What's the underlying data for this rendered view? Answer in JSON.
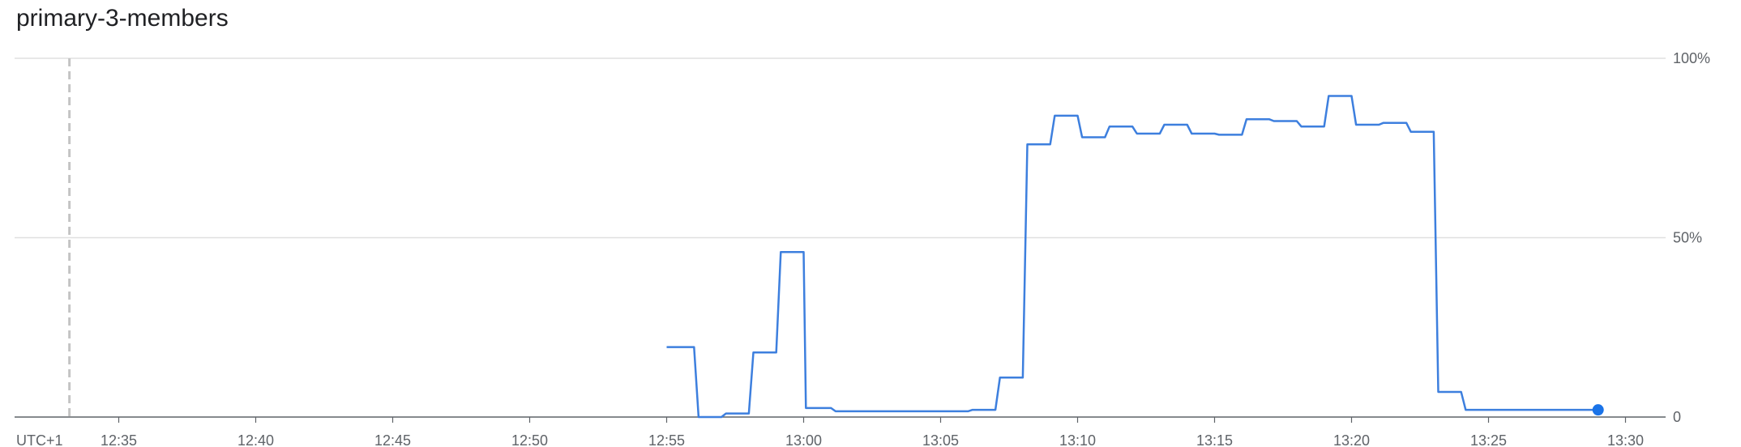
{
  "chart_data": {
    "type": "line",
    "title": "primary-3-members",
    "timezone_label": "UTC+1",
    "x_tick_labels": [
      "12:35",
      "12:40",
      "12:45",
      "12:50",
      "12:55",
      "13:00",
      "13:05",
      "13:10",
      "13:15",
      "13:20",
      "13:25",
      "13:30"
    ],
    "y_tick_labels": [
      "0",
      "50%",
      "100%"
    ],
    "ylim": [
      0,
      100
    ],
    "xlim_minutes": [
      "12:33",
      "13:31"
    ],
    "grid": true,
    "marker_time": "12:33:12",
    "series": [
      {
        "color": "#3d7fde",
        "points": [
          [
            "12:55:00",
            19.5
          ],
          [
            "12:56:00",
            19.5
          ],
          [
            "12:56:10",
            0
          ],
          [
            "12:57:00",
            0
          ],
          [
            "12:57:10",
            1
          ],
          [
            "12:58:00",
            1
          ],
          [
            "12:58:10",
            18
          ],
          [
            "12:59:00",
            18
          ],
          [
            "12:59:10",
            46
          ],
          [
            "13:00:00",
            46
          ],
          [
            "13:00:05",
            2.5
          ],
          [
            "13:01:00",
            2.5
          ],
          [
            "13:01:10",
            1.6
          ],
          [
            "13:06:00",
            1.6
          ],
          [
            "13:06:10",
            2
          ],
          [
            "13:07:00",
            2
          ],
          [
            "13:07:10",
            11
          ],
          [
            "13:08:00",
            11
          ],
          [
            "13:08:10",
            76
          ],
          [
            "13:09:00",
            76
          ],
          [
            "13:09:10",
            84
          ],
          [
            "13:10:00",
            84
          ],
          [
            "13:10:10",
            78
          ],
          [
            "13:11:00",
            78
          ],
          [
            "13:11:10",
            81
          ],
          [
            "13:12:00",
            81
          ],
          [
            "13:12:10",
            79
          ],
          [
            "13:13:00",
            79
          ],
          [
            "13:13:10",
            81.5
          ],
          [
            "13:14:00",
            81.5
          ],
          [
            "13:14:10",
            79
          ],
          [
            "13:15:00",
            79
          ],
          [
            "13:15:10",
            78.7
          ],
          [
            "13:16:00",
            78.7
          ],
          [
            "13:16:10",
            83
          ],
          [
            "13:17:00",
            83
          ],
          [
            "13:17:10",
            82.5
          ],
          [
            "13:18:00",
            82.5
          ],
          [
            "13:18:10",
            81
          ],
          [
            "13:19:00",
            81
          ],
          [
            "13:19:10",
            89.5
          ],
          [
            "13:20:00",
            89.5
          ],
          [
            "13:20:10",
            81.5
          ],
          [
            "13:21:00",
            81.5
          ],
          [
            "13:21:10",
            82
          ],
          [
            "13:22:00",
            82
          ],
          [
            "13:22:10",
            79.5
          ],
          [
            "13:23:00",
            79.5
          ],
          [
            "13:23:10",
            7
          ],
          [
            "13:24:00",
            7
          ],
          [
            "13:24:10",
            2
          ],
          [
            "13:29:00",
            2
          ]
        ],
        "last_point": [
          "13:29:00",
          2
        ]
      }
    ]
  }
}
